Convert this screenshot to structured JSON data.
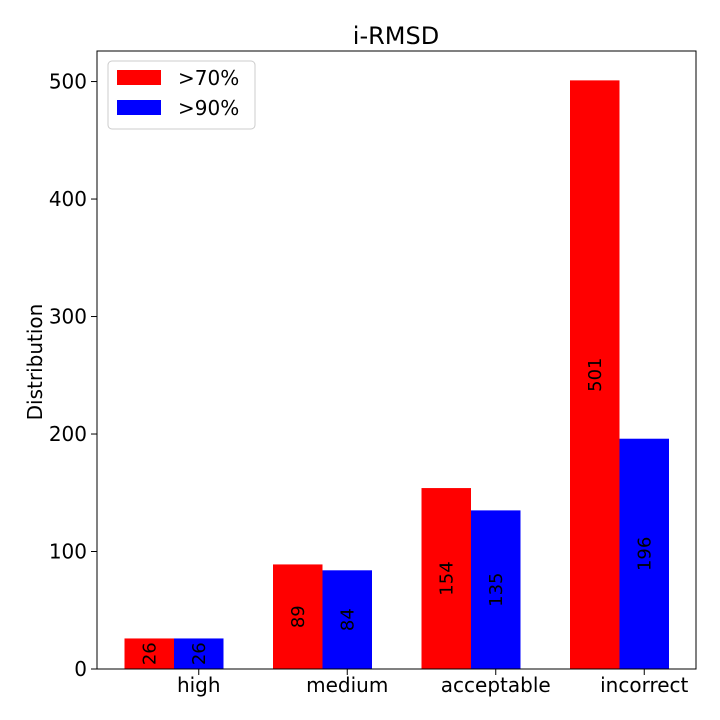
{
  "chart_data": {
    "type": "bar",
    "title": "i-RMSD",
    "xlabel": "",
    "ylabel": "Distribution",
    "categories": [
      "high",
      "medium",
      "acceptable",
      "incorrect"
    ],
    "series": [
      {
        "name": ">70%",
        "color": "#ff0000",
        "values": [
          26,
          89,
          154,
          501
        ]
      },
      {
        "name": ">90%",
        "color": "#0000ff",
        "values": [
          26,
          84,
          135,
          196
        ]
      }
    ],
    "ylim": [
      0,
      526
    ],
    "yticks": [
      0,
      100,
      200,
      300,
      400,
      500
    ],
    "grid": false,
    "legend_position": "top-left"
  }
}
